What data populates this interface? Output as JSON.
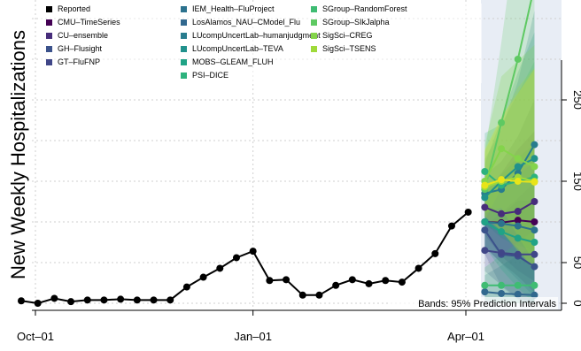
{
  "chart_data": {
    "type": "line",
    "ylabel": "New Weekly Hospitalizations",
    "xlabel": "",
    "title": "",
    "x_ticks": [
      "Oct–01",
      "Jan–01",
      "Apr–01"
    ],
    "y_ticks": [
      "0",
      "50",
      "150",
      "250"
    ],
    "ylim": [
      0,
      300
    ],
    "grid": true,
    "legend_placement": "top",
    "annotation": "Bands: 95% Prediction Intervals",
    "reported": {
      "name": "Reported",
      "color": "#000000",
      "x": [
        "2021-09-25",
        "2021-10-02",
        "2021-10-09",
        "2021-10-16",
        "2021-10-23",
        "2021-10-30",
        "2021-11-06",
        "2021-11-13",
        "2021-11-20",
        "2021-11-27",
        "2021-12-04",
        "2021-12-11",
        "2021-12-18",
        "2021-12-25",
        "2022-01-01",
        "2022-01-08",
        "2022-01-15",
        "2022-01-22",
        "2022-01-29",
        "2022-02-05",
        "2022-02-12",
        "2022-02-19",
        "2022-02-26",
        "2022-03-05",
        "2022-03-12",
        "2022-03-19",
        "2022-03-26",
        "2022-04-02"
      ],
      "values": [
        3,
        0,
        6,
        2,
        4,
        4,
        5,
        4,
        4,
        4,
        20,
        32,
        43,
        56,
        64,
        28,
        29,
        10,
        10,
        22,
        29,
        24,
        28,
        26,
        43,
        61,
        95,
        112
      ]
    },
    "series": [
      {
        "name": "CMU–TimeSeries",
        "color": "#440154",
        "values": [
          100,
          99,
          102,
          100
        ]
      },
      {
        "name": "CU–ensemble",
        "color": "#472d7b",
        "values": [
          118,
          110,
          113,
          125
        ]
      },
      {
        "name": "GH–Flusight",
        "color": "#3b528b",
        "values": [
          90,
          60,
          58,
          45
        ]
      },
      {
        "name": "GT–FluFNP",
        "color": "#404688",
        "values": [
          65,
          62,
          60,
          60
        ]
      },
      {
        "name": "IEM_Health–FluProject",
        "color": "#2c728e",
        "values": [
          100,
          98,
          95,
          90
        ]
      },
      {
        "name": "LosAlamos_NAU–CModel_Flu",
        "color": "#31688e",
        "values": [
          14,
          12,
          11,
          10
        ]
      },
      {
        "name": "LUcompUncertLab–humanjudgment",
        "color": "#287c8e",
        "values": [
          135,
          140,
          160,
          195
        ]
      },
      {
        "name": "LUcompUncertLab–TEVA",
        "color": "#21918c",
        "values": [
          130,
          150,
          168,
          178
        ]
      },
      {
        "name": "MOBS–GLEAM_FLUH",
        "color": "#20a386",
        "values": [
          100,
          88,
          80,
          75
        ]
      },
      {
        "name": "PSI–DICE",
        "color": "#2db27d",
        "values": [
          162,
          145,
          150,
          155
        ]
      },
      {
        "name": "SGroup–RandomForest",
        "color": "#3fbc73",
        "values": [
          22,
          22,
          22,
          22
        ]
      },
      {
        "name": "SGroup–SIkJalpha",
        "color": "#5ec962",
        "values": [
          140,
          222,
          300,
          390
        ]
      },
      {
        "name": "SigSci–CREG",
        "color": "#84d44b",
        "values": [
          150,
          190,
          178,
          168
        ]
      },
      {
        "name": "SigSci–TSENS",
        "color": "#9fda3a",
        "values": [
          143,
          150,
          155,
          150
        ]
      },
      {
        "name": "",
        "color": "#e8e419",
        "values": [
          145,
          152,
          150,
          149
        ]
      }
    ],
    "forecast_x": [
      "2022-04-09",
      "2022-04-16",
      "2022-04-23",
      "2022-04-30"
    ]
  }
}
